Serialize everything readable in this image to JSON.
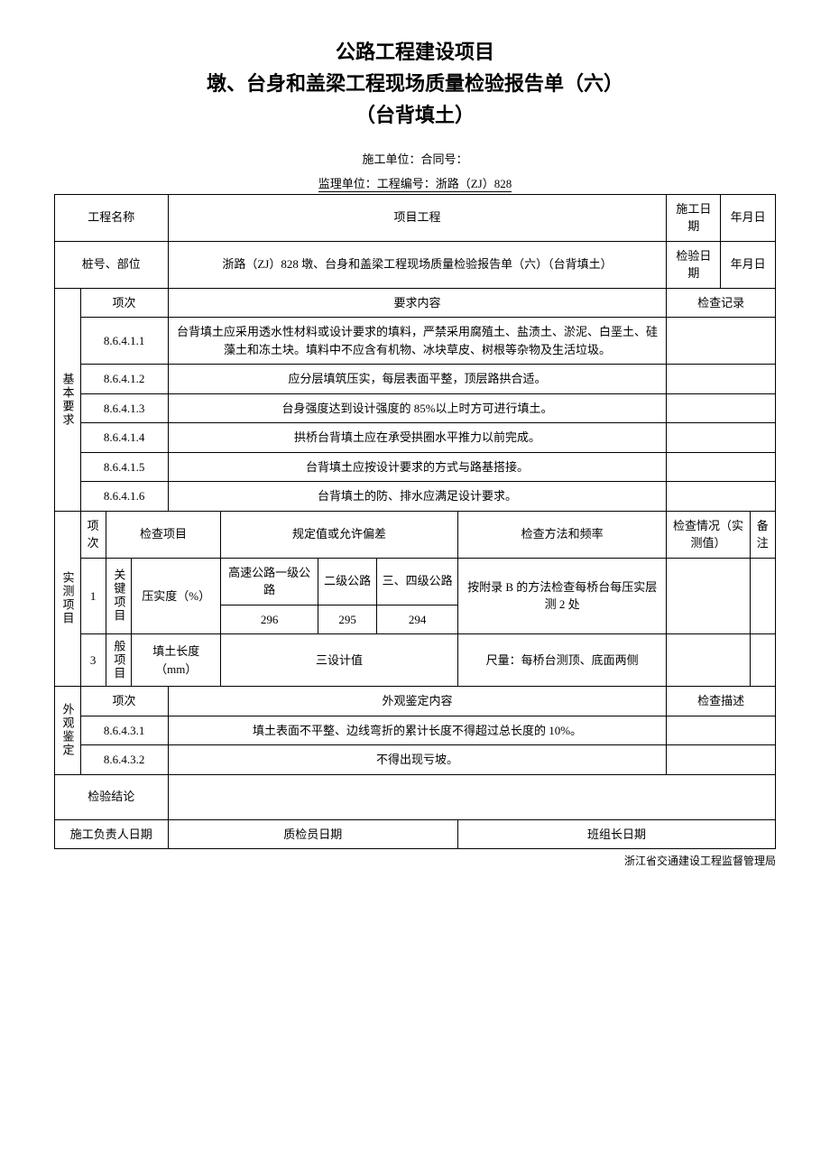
{
  "title": {
    "line1": "公路工程建设项目",
    "line2": "墩、台身和盖梁工程现场质量检验报告单（六）",
    "line3": "（台背填土）"
  },
  "meta": {
    "line1": "施工单位：合同号：",
    "line2": "监理单位：工程编号：浙路（ZJ）828"
  },
  "header": {
    "proj_name_label": "工程名称",
    "proj_name_value": "项目工程",
    "const_date_label": "施工日期",
    "const_date_value": "年月日",
    "pile_label": "桩号、部位",
    "pile_value": "浙路（ZJ）828 墩、台身和盖梁工程现场质量检验报告单（六）（台背填土）",
    "inspect_date_label": "检验日期",
    "inspect_date_value": "年月日"
  },
  "basic": {
    "section_label": "基本要求",
    "col_item": "项次",
    "col_content": "要求内容",
    "col_record": "检查记录",
    "rows": [
      {
        "code": "8.6.4.1.1",
        "text": "台背填土应采用透水性材料或设计要求的填料，严禁采用腐殖土、盐渍土、淤泥、白垩土、硅藻土和冻土块。填料中不应含有机物、冰块草皮、树根等杂物及生活垃圾。"
      },
      {
        "code": "8.6.4.1.2",
        "text": "应分层填筑压实，每层表面平整，顶层路拱合适。"
      },
      {
        "code": "8.6.4.1.3",
        "text": "台身强度达到设计强度的 85%以上时方可进行填土。"
      },
      {
        "code": "8.6.4.1.4",
        "text": "拱桥台背填土应在承受拱圈水平推力以前完成。"
      },
      {
        "code": "8.6.4.1.5",
        "text": "台背填土应按设计要求的方式与路基搭接。"
      },
      {
        "code": "8.6.4.1.6",
        "text": "台背填土的防、排水应满足设计要求。"
      }
    ]
  },
  "measured": {
    "section_label": "实测项目",
    "col_no": "项次",
    "col_item": "检查项目",
    "col_spec": "规定值或允许偏差",
    "col_method": "检查方法和频率",
    "col_result": "检查情况（实测值）",
    "col_remark": "备注",
    "key_label": "关键项目",
    "general_label": "般项目",
    "row1": {
      "no": "1",
      "item": "压实度（%）",
      "h1": "高速公路一级公路",
      "h2": "二级公路",
      "h3": "三、四级公路",
      "v1": "296",
      "v2": "295",
      "v3": "294",
      "method": "按附录 B 的方法检查每桥台每压实层测 2 处"
    },
    "row2": {
      "no": "3",
      "item": "填土长度（mm）",
      "spec": "三设计值",
      "method": "尺量：每桥台测顶、底面两侧"
    }
  },
  "appearance": {
    "section_label": "外观鉴定",
    "col_item": "项次",
    "col_content": "外观鉴定内容",
    "col_desc": "检查描述",
    "rows": [
      {
        "code": "8.6.4.3.1",
        "text": "填土表面不平整、边线弯折的累计长度不得超过总长度的 10%。"
      },
      {
        "code": "8.6.4.3.2",
        "text": "不得出现亏坡。"
      }
    ]
  },
  "conclusion": {
    "label": "检验结论",
    "sig1": "施工负责人日期",
    "sig2": "质检员日期",
    "sig3": "班组长日期"
  },
  "footer": "浙江省交通建设工程监督管理局"
}
